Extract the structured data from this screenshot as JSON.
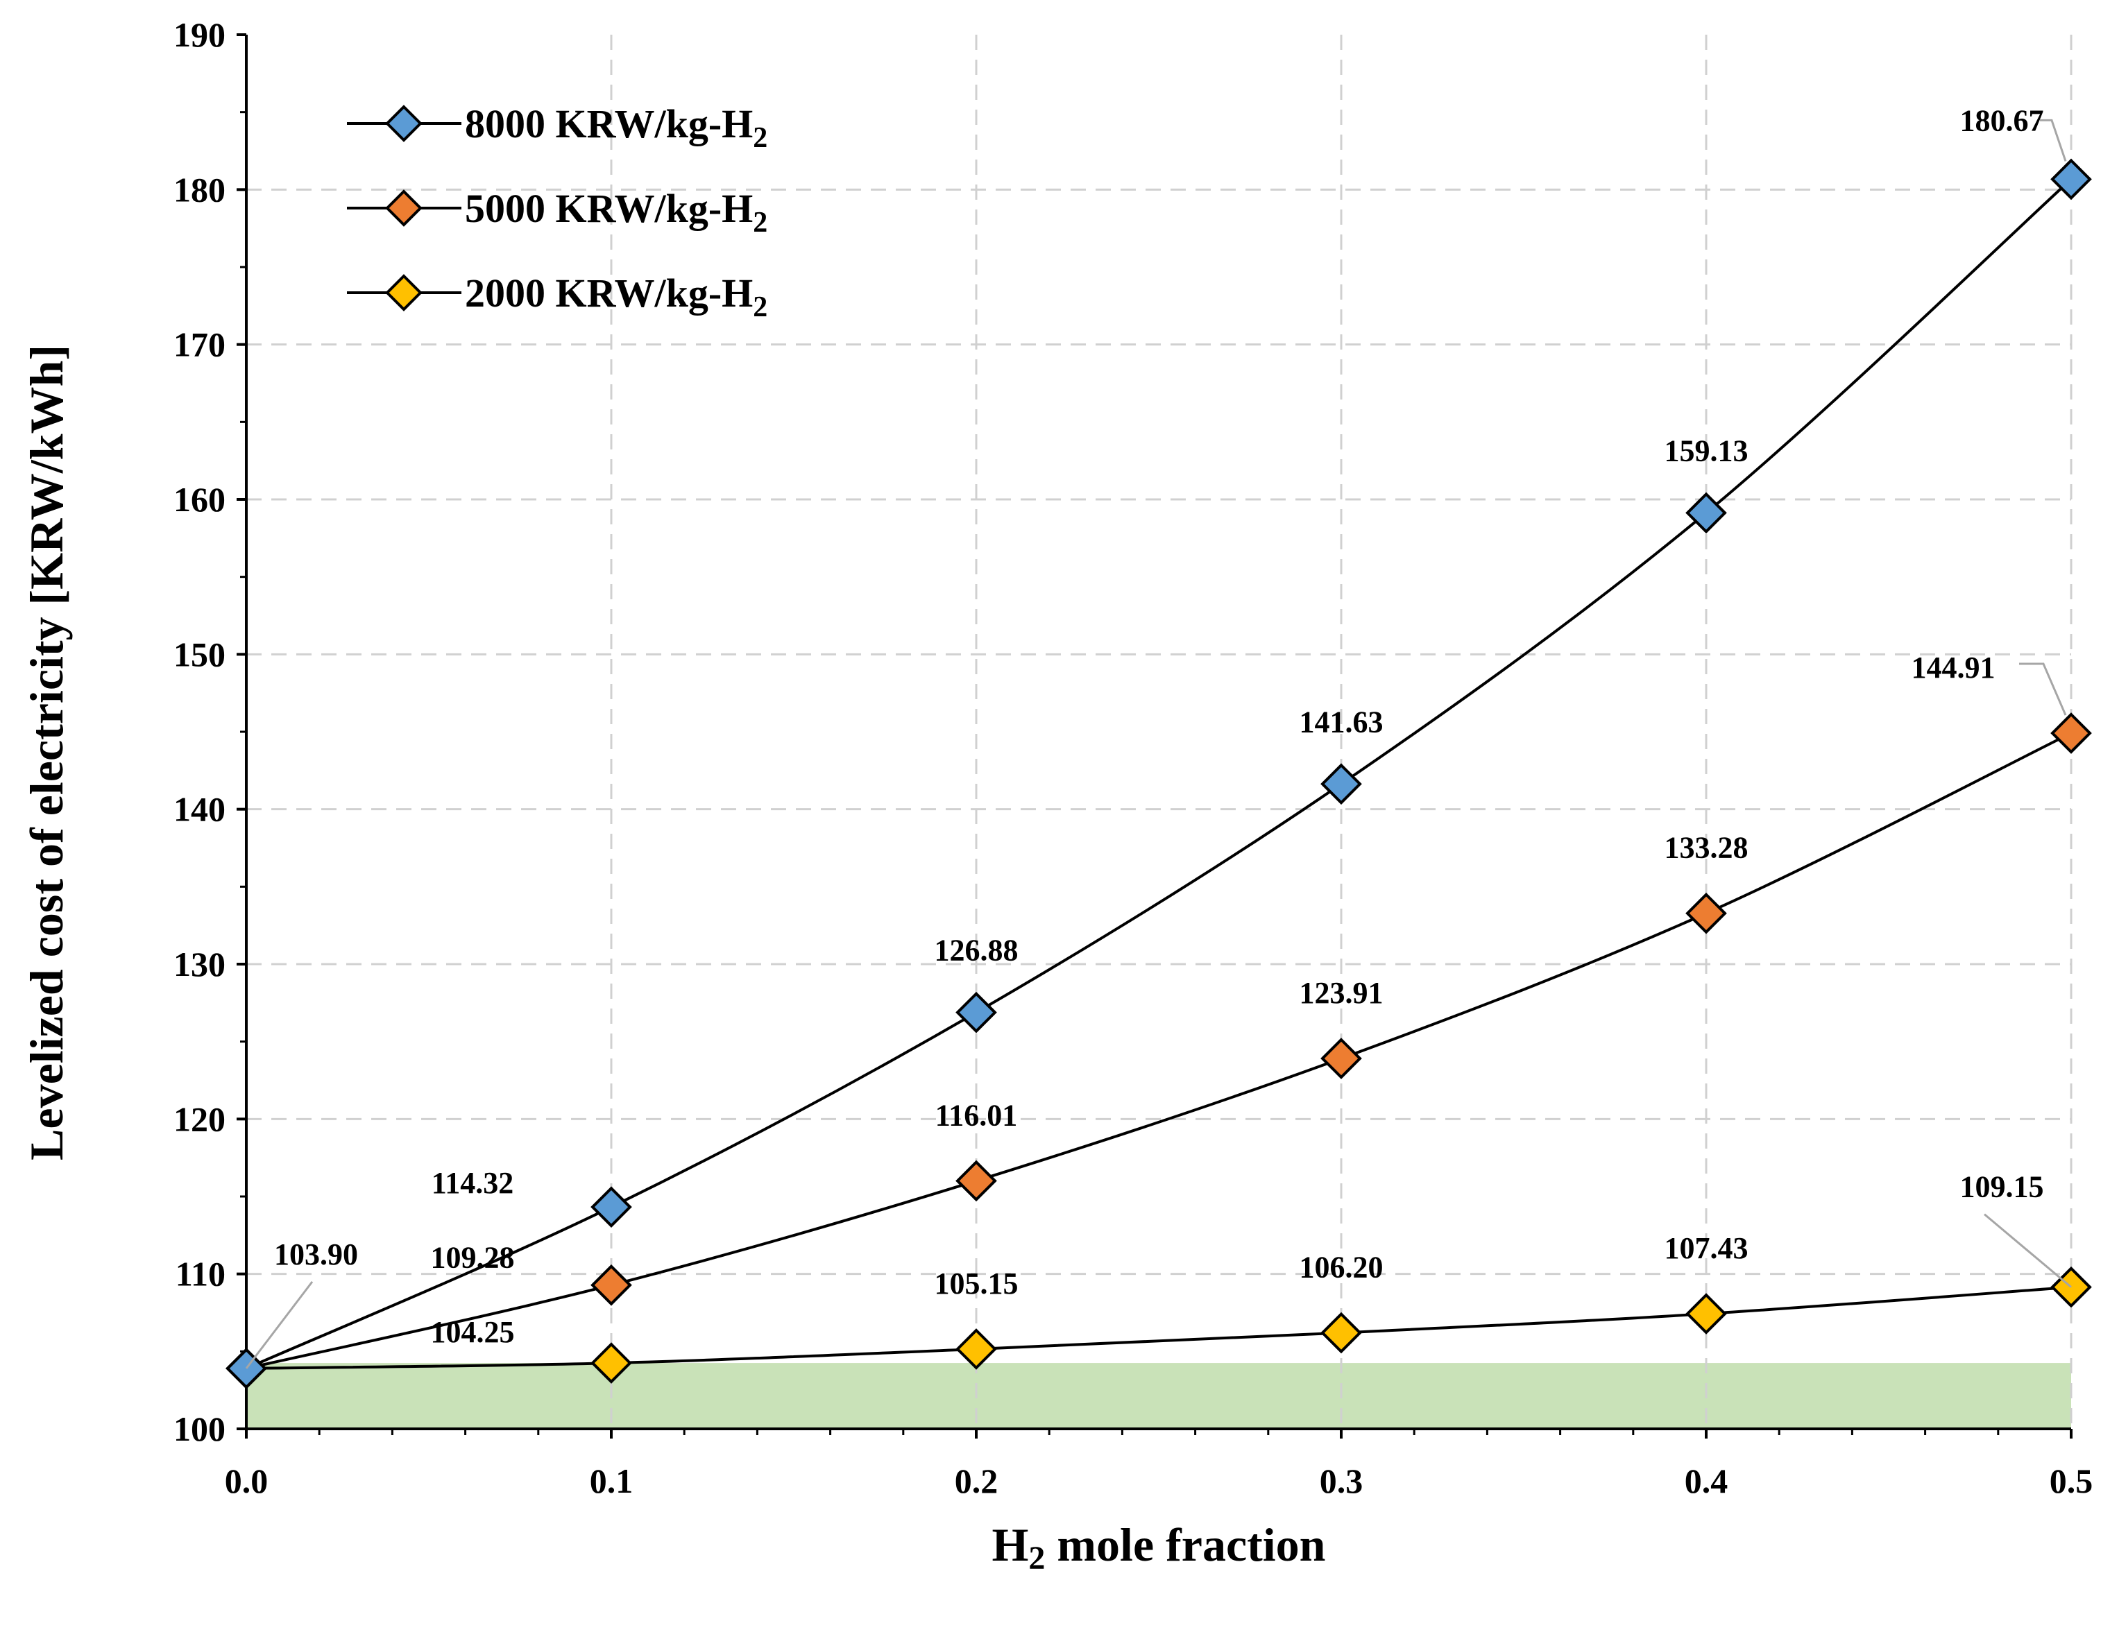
{
  "chart_data": {
    "type": "line",
    "title": "",
    "xlabel_main": "H",
    "xlabel_sub": "2",
    "xlabel_rest": " mole fraction",
    "ylabel": "Levelized cost of electricity [KRW/kWh]",
    "xlim": [
      0.0,
      0.5
    ],
    "ylim": [
      100,
      190
    ],
    "x": [
      0.0,
      0.1,
      0.2,
      0.3,
      0.4,
      0.5
    ],
    "x_tick_labels": [
      "0.0",
      "0.1",
      "0.2",
      "0.3",
      "0.4",
      "0.5"
    ],
    "y_ticks": [
      100,
      110,
      120,
      130,
      140,
      150,
      160,
      170,
      180,
      190
    ],
    "y_tick_labels": [
      "100",
      "110",
      "120",
      "130",
      "140",
      "150",
      "160",
      "170",
      "180",
      "190"
    ],
    "grid": true,
    "legend_position": "top-left",
    "series": [
      {
        "name": "8000 KRW/kg-H",
        "name_sub": "2",
        "color": "#5B9BD5",
        "values": [
          103.9,
          114.32,
          126.88,
          141.63,
          159.13,
          180.67
        ],
        "labels": [
          "",
          "114.32",
          "126.88",
          "141.63",
          "159.13",
          "180.67"
        ]
      },
      {
        "name": "5000 KRW/kg-H",
        "name_sub": "2",
        "color": "#ED7D31",
        "values": [
          103.9,
          109.28,
          116.01,
          123.91,
          133.28,
          144.91
        ],
        "labels": [
          "103.90",
          "109.28",
          "116.01",
          "123.91",
          "133.28",
          "144.91"
        ]
      },
      {
        "name": "2000 KRW/kg-H",
        "name_sub": "2",
        "color": "#FFC000",
        "values": [
          103.9,
          104.25,
          105.15,
          106.2,
          107.43,
          109.15
        ],
        "labels": [
          "",
          "104.25",
          "105.15",
          "106.20",
          "107.43",
          "109.15"
        ]
      }
    ],
    "shaded_band": {
      "y_from": 100,
      "y_to": 104.25,
      "color": "#C9E2B8"
    }
  }
}
